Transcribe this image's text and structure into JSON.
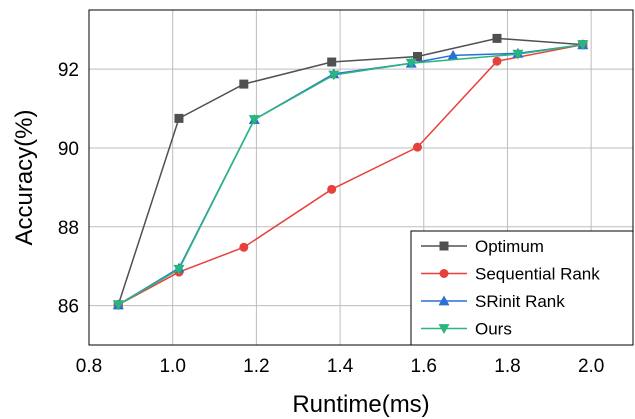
{
  "chart_data": {
    "type": "line",
    "xlabel": "Runtime(ms)",
    "ylabel": "Accuracy(%)",
    "xlim": [
      0.8,
      2.1
    ],
    "ylim": [
      85.0,
      93.5
    ],
    "xticks": [
      "0.8",
      "1.0",
      "1.2",
      "1.4",
      "1.6",
      "1.8",
      "2.0"
    ],
    "yticks": [
      "86",
      "88",
      "90",
      "92"
    ],
    "grid": true,
    "legend_position": "bottom-right",
    "series": [
      {
        "name": "Optimum",
        "color": "#505050",
        "marker": "square",
        "x": [
          0.87,
          1.015,
          1.17,
          1.38,
          1.585,
          1.775,
          1.98
        ],
        "y": [
          86.02,
          90.75,
          91.62,
          92.18,
          92.32,
          92.78,
          92.62
        ]
      },
      {
        "name": "Sequential Rank",
        "color": "#e8413c",
        "marker": "circle",
        "x": [
          0.87,
          1.015,
          1.17,
          1.38,
          1.585,
          1.775,
          1.98
        ],
        "y": [
          86.02,
          86.85,
          87.48,
          88.95,
          90.02,
          92.2,
          92.62
        ]
      },
      {
        "name": "SRinit Rank",
        "color": "#2a6fd6",
        "marker": "triangle-up",
        "x": [
          0.87,
          1.015,
          1.195,
          1.385,
          1.57,
          1.67,
          1.825,
          1.98
        ],
        "y": [
          86.02,
          86.95,
          90.72,
          91.88,
          92.15,
          92.35,
          92.4,
          92.62
        ]
      },
      {
        "name": "Ours",
        "color": "#2ab57d",
        "marker": "triangle-down",
        "x": [
          0.87,
          1.015,
          1.195,
          1.385,
          1.57,
          1.825,
          1.98
        ],
        "y": [
          86.02,
          86.92,
          90.72,
          91.85,
          92.15,
          92.38,
          92.62
        ]
      }
    ]
  }
}
